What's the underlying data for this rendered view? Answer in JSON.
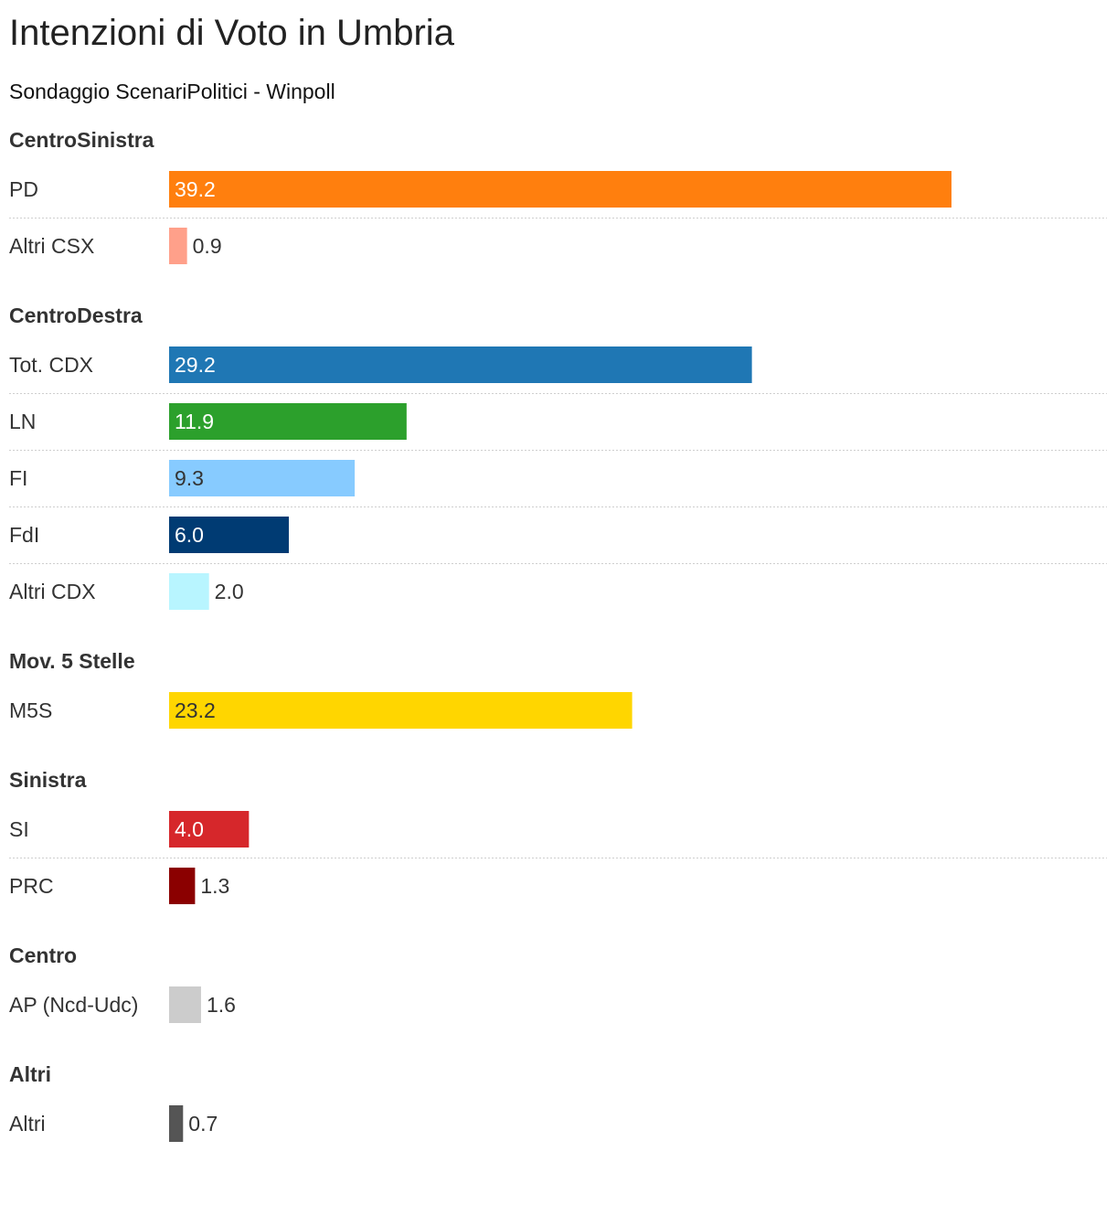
{
  "title": "Intenzioni di Voto in Umbria",
  "subtitle": "Sondaggio ScenariPolitici - Winpoll",
  "chart_data": {
    "type": "bar",
    "orientation": "horizontal",
    "title": "Intenzioni di Voto in Umbria",
    "subtitle": "Sondaggio ScenariPolitici - Winpoll",
    "xlim": [
      0,
      47
    ],
    "groups": [
      {
        "name": "CentroSinistra",
        "rows": [
          {
            "label": "PD",
            "value": 39.2,
            "display": "39.2",
            "color": "#ff7f0e",
            "text_color": "#ffffff"
          },
          {
            "label": "Altri CSX",
            "value": 0.9,
            "display": "0.9",
            "color": "#ffa08a",
            "text_color": "#333333"
          }
        ]
      },
      {
        "name": "CentroDestra",
        "rows": [
          {
            "label": "Tot. CDX",
            "value": 29.2,
            "display": "29.2",
            "color": "#1f77b4",
            "text_color": "#ffffff"
          },
          {
            "label": "LN",
            "value": 11.9,
            "display": "11.9",
            "color": "#2ca02c",
            "text_color": "#ffffff"
          },
          {
            "label": "FI",
            "value": 9.3,
            "display": "9.3",
            "color": "#87cbff",
            "text_color": "#333333"
          },
          {
            "label": "FdI",
            "value": 6.0,
            "display": "6.0",
            "color": "#003b73",
            "text_color": "#ffffff"
          },
          {
            "label": "Altri CDX",
            "value": 2.0,
            "display": "2.0",
            "color": "#b8f5ff",
            "text_color": "#333333"
          }
        ]
      },
      {
        "name": "Mov. 5 Stelle",
        "rows": [
          {
            "label": "M5S",
            "value": 23.2,
            "display": "23.2",
            "color": "#ffd600",
            "text_color": "#333333"
          }
        ]
      },
      {
        "name": "Sinistra",
        "rows": [
          {
            "label": "SI",
            "value": 4.0,
            "display": "4.0",
            "color": "#d6272b",
            "text_color": "#ffffff"
          },
          {
            "label": "PRC",
            "value": 1.3,
            "display": "1.3",
            "color": "#8b0000",
            "text_color": "#333333"
          }
        ]
      },
      {
        "name": "Centro",
        "rows": [
          {
            "label": "AP (Ncd-Udc)",
            "value": 1.6,
            "display": "1.6",
            "color": "#cccccc",
            "text_color": "#333333"
          }
        ]
      },
      {
        "name": "Altri",
        "rows": [
          {
            "label": "Altri",
            "value": 0.7,
            "display": "0.7",
            "color": "#555555",
            "text_color": "#333333"
          }
        ]
      }
    ]
  }
}
